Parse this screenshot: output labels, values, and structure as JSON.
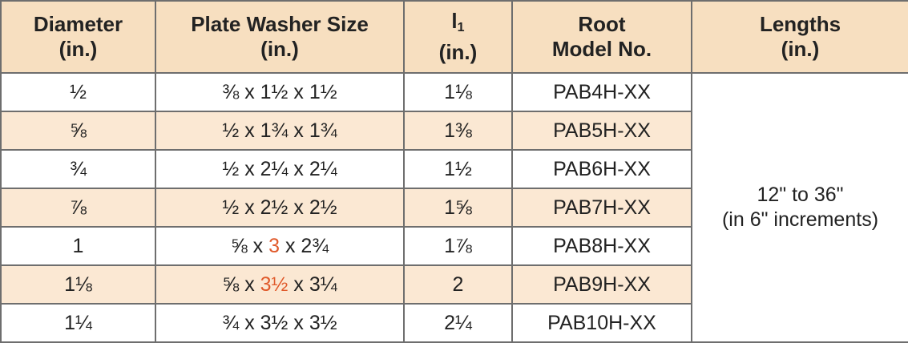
{
  "colors": {
    "header_bg": "#f7dfc0",
    "shaded_row_bg": "#fbe8d3",
    "highlight_text": "#e05a2b",
    "border": "#6e6e6e"
  },
  "header": {
    "diameter": {
      "line1": "Diameter",
      "line2": "(in.)"
    },
    "plate_washer": {
      "line1": "Plate Washer Size",
      "line2": "(in.)"
    },
    "l1": {
      "symbol": "l",
      "subscript": "1",
      "line2": "(in.)"
    },
    "root_model": {
      "line1": "Root",
      "line2": "Model No."
    },
    "lengths": {
      "line1": "Lengths",
      "line2": "(in.)"
    }
  },
  "rows": [
    {
      "diameter": "½",
      "washer": {
        "a": "⅜ x ",
        "b": "1½",
        "c": " x 1½"
      },
      "l1": "1⅛",
      "model": "PAB4H-XX"
    },
    {
      "diameter": "⅝",
      "washer": {
        "a": "½ x ",
        "b": "1¾",
        "c": " x 1¾"
      },
      "l1": "1⅜",
      "model": "PAB5H-XX"
    },
    {
      "diameter": "¾",
      "washer": {
        "a": "½ x ",
        "b": "2¼",
        "c": " x 2¼"
      },
      "l1": "1½",
      "model": "PAB6H-XX"
    },
    {
      "diameter": "⅞",
      "washer": {
        "a": "½ x ",
        "b": "2½",
        "c": " x 2½"
      },
      "l1": "1⅝",
      "model": "PAB7H-XX"
    },
    {
      "diameter": "1",
      "washer": {
        "a": "⅝ x ",
        "b": "3",
        "c": " x 2¾"
      },
      "l1": "1⅞",
      "model": "PAB8H-XX"
    },
    {
      "diameter": "1⅛",
      "washer": {
        "a": "⅝ x ",
        "b": "3½",
        "c": " x 3¼"
      },
      "l1": "2",
      "model": "PAB9H-XX"
    },
    {
      "diameter": "1¼",
      "washer": {
        "a": "¾ x ",
        "b": "3½",
        "c": " x 3½"
      },
      "l1": "2¼",
      "model": "PAB10H-XX"
    }
  ],
  "lengths": {
    "line1": "12\" to 36\"",
    "line2": "(in 6\" increments)"
  }
}
